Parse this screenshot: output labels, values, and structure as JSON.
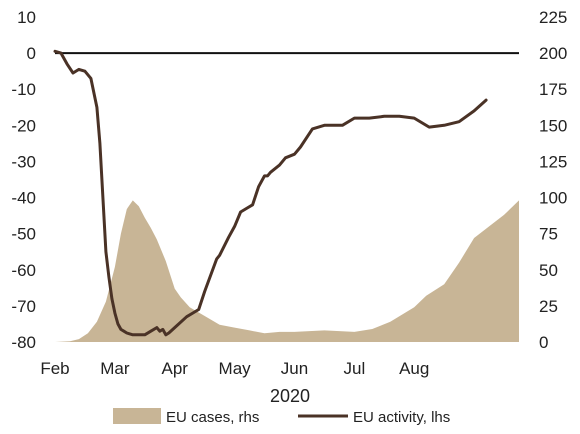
{
  "chart_data": {
    "type": "area",
    "x_axis": {
      "categories": [
        "Feb",
        "Mar",
        "Apr",
        "May",
        "Jun",
        "Jul",
        "Aug"
      ],
      "xlabel": "2020",
      "xlim": [
        0,
        7.75
      ]
    },
    "y_left": {
      "ylim": [
        -80,
        10
      ],
      "ticks": [
        10,
        0,
        -10,
        -20,
        -30,
        -40,
        -50,
        -60,
        -70,
        -80
      ]
    },
    "y_right": {
      "ylim": [
        0,
        225
      ],
      "ticks": [
        225,
        200,
        175,
        150,
        125,
        100,
        75,
        50,
        25,
        0
      ]
    },
    "reference_line": {
      "axis": "left",
      "value": 0
    },
    "colors": {
      "cases": "#c8b596",
      "activity": "#4a3226",
      "zero_line": "#111111"
    },
    "grid": false,
    "legend_position": "bottom-center",
    "series": [
      {
        "name": "EU cases, rhs",
        "type": "area",
        "axis": "right",
        "x": [
          0,
          0.25,
          0.4,
          0.55,
          0.7,
          0.85,
          1.0,
          1.1,
          1.2,
          1.3,
          1.4,
          1.5,
          1.6,
          1.7,
          1.85,
          2.0,
          2.1,
          2.25,
          2.5,
          2.75,
          3.0,
          3.25,
          3.5,
          3.75,
          4.0,
          4.5,
          5.0,
          5.3,
          5.6,
          6.0,
          6.2,
          6.5,
          6.75,
          7.0,
          7.25,
          7.5,
          7.75
        ],
        "values": [
          0,
          0.5,
          2,
          6,
          14,
          28,
          52,
          75,
          92,
          98,
          94,
          86,
          79,
          71,
          56,
          37,
          31,
          24,
          18,
          12,
          10,
          8,
          6,
          7,
          7,
          8,
          7,
          9,
          14,
          24,
          32,
          40,
          55,
          72,
          80,
          88,
          98
        ]
      },
      {
        "name": "EU activity, lhs",
        "type": "line",
        "axis": "left",
        "x": [
          0,
          0.1,
          0.2,
          0.3,
          0.4,
          0.5,
          0.6,
          0.7,
          0.75,
          0.8,
          0.85,
          0.9,
          0.95,
          1.0,
          1.05,
          1.1,
          1.15,
          1.2,
          1.3,
          1.5,
          1.6,
          1.7,
          1.75,
          1.8,
          1.85,
          1.9,
          2.0,
          2.2,
          2.3,
          2.4,
          2.5,
          2.7,
          2.75,
          2.9,
          3.0,
          3.1,
          3.2,
          3.3,
          3.4,
          3.5,
          3.55,
          3.6,
          3.75,
          3.85,
          4.0,
          4.1,
          4.3,
          4.5,
          4.8,
          5.0,
          5.25,
          5.5,
          5.75,
          6.0,
          6.25,
          6.5,
          6.75,
          7.0,
          7.1,
          7.2
        ],
        "values": [
          0.5,
          0,
          -3,
          -5.5,
          -4.5,
          -5,
          -7,
          -15,
          -25,
          -40,
          -55,
          -62,
          -68,
          -72,
          -75,
          -76.5,
          -77,
          -77.5,
          -78,
          -78,
          -77,
          -76,
          -77,
          -76.5,
          -78,
          -77.5,
          -76,
          -73,
          -72,
          -71,
          -66,
          -57,
          -56,
          -51,
          -48,
          -44,
          -43,
          -42,
          -37,
          -34,
          -34,
          -33,
          -31,
          -29,
          -28,
          -26,
          -21,
          -20,
          -20,
          -18,
          -18,
          -17.5,
          -17.5,
          -18,
          -20.5,
          -20,
          -19,
          -16,
          -14.5,
          -13
        ]
      }
    ]
  }
}
